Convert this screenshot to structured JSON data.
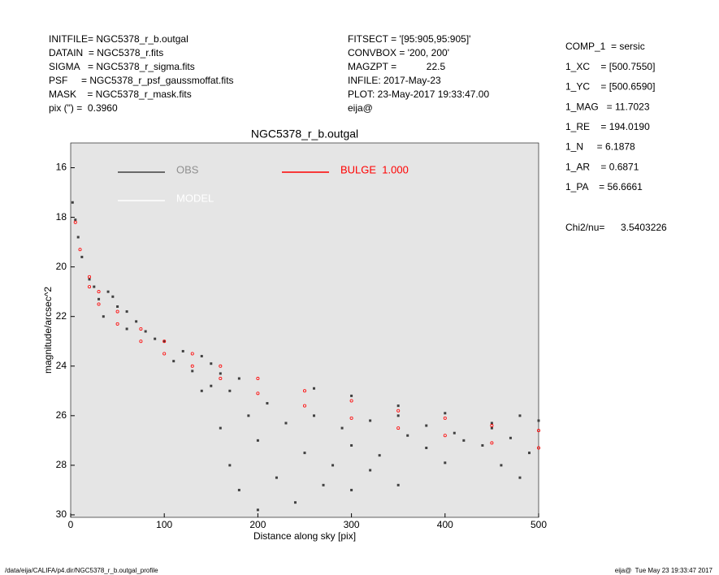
{
  "header_left": [
    "INITFILE= NGC5378_r_b.outgal",
    "DATAIN  = NGC5378_r.fits",
    "SIGMA   = NGC5378_r_sigma.fits",
    "PSF     = NGC5378_r_psf_gaussmoffat.fits",
    "MASK    = NGC5378_r_mask.fits",
    "pix (\") =  0.3960"
  ],
  "header_mid": [
    "FITSECT = '[95:905,95:905]'",
    "CONVBOX = '200, 200'",
    "MAGZPT =           22.5",
    "INFILE: 2017-May-23",
    "PLOT: 23-May-2017 19:33:47.00",
    "eija@"
  ],
  "params": [
    "COMP_1  = sersic",
    "1_XC    = [500.7550]",
    "1_YC    = [500.6590]",
    "1_MAG   = 11.7023",
    "1_RE    = 194.0190",
    "1_N     = 6.1878",
    "1_AR    = 0.6871",
    "1_PA    = 56.6661"
  ],
  "chi2": {
    "label": "Chi2/nu=",
    "value": "3.5403226"
  },
  "footer": {
    "left": "/data/eija/CALIFA/p4.dir/NGC5378_r_b.outgal_profile",
    "right": "eija@  Tue May 23 19:33:47 2017"
  },
  "chart_data": {
    "type": "scatter",
    "title": "NGC5378_r_b.outgal",
    "x_label": "Distance along sky [pix]",
    "y_label": "magnitude/arcsec^2",
    "xlim": [
      0,
      500
    ],
    "xticks": [
      0,
      100,
      200,
      300,
      400,
      500
    ],
    "ylim": [
      15,
      30.1
    ],
    "yticks": [
      16,
      18,
      20,
      22,
      24,
      26,
      28,
      30
    ],
    "y_inverted": true,
    "series": [
      {
        "name": "OBS",
        "color": "#404040",
        "x": [
          2,
          5,
          8,
          12,
          20,
          30,
          35,
          45,
          50,
          60,
          70,
          80,
          90,
          100,
          120,
          140,
          150,
          160,
          170,
          160,
          170,
          180,
          200,
          220,
          250,
          280,
          300,
          330,
          360,
          400,
          420,
          450,
          480,
          500,
          490,
          130,
          140,
          190,
          210,
          230,
          260,
          290,
          320,
          350,
          380,
          410,
          440,
          470,
          240,
          300,
          350,
          200,
          260,
          300,
          350,
          400,
          450,
          480,
          60,
          40,
          25,
          110,
          150,
          180,
          270,
          320,
          380,
          460
        ],
        "values": [
          17.4,
          18.1,
          18.8,
          19.6,
          20.5,
          21.3,
          22.0,
          21.2,
          21.6,
          21.8,
          22.2,
          22.6,
          22.9,
          23.0,
          23.4,
          23.6,
          23.9,
          24.3,
          25.0,
          26.5,
          28.0,
          29.0,
          27.0,
          28.5,
          27.5,
          28.0,
          27.2,
          27.6,
          26.8,
          27.9,
          27.0,
          26.5,
          26.0,
          26.2,
          27.5,
          24.2,
          25.0,
          26.0,
          25.5,
          26.3,
          26.0,
          26.5,
          26.2,
          26.0,
          26.4,
          26.7,
          27.2,
          26.9,
          29.5,
          29.0,
          28.8,
          29.8,
          24.9,
          25.2,
          25.6,
          25.9,
          26.3,
          28.5,
          22.5,
          21.0,
          20.8,
          23.8,
          24.8,
          24.5,
          28.8,
          28.2,
          27.3,
          28.0
        ]
      },
      {
        "name": "MODEL",
        "color": "#ffffff",
        "x": [],
        "values": []
      },
      {
        "name": "BULGE  1.000",
        "color": "#ff0000",
        "x": [
          5,
          10,
          20,
          30,
          50,
          75,
          100,
          130,
          160,
          200,
          250,
          300,
          350,
          400,
          450,
          500,
          20,
          30,
          50,
          75,
          100,
          130,
          160,
          200,
          250,
          300,
          350,
          400,
          450,
          500
        ],
        "values": [
          18.2,
          19.3,
          20.4,
          21.0,
          21.8,
          22.5,
          23.0,
          23.5,
          24.0,
          24.5,
          25.0,
          25.4,
          25.8,
          26.1,
          26.4,
          26.6,
          20.8,
          21.5,
          22.3,
          23.0,
          23.5,
          24.0,
          24.5,
          25.1,
          25.6,
          26.1,
          26.5,
          26.8,
          27.1,
          27.3
        ]
      }
    ]
  }
}
